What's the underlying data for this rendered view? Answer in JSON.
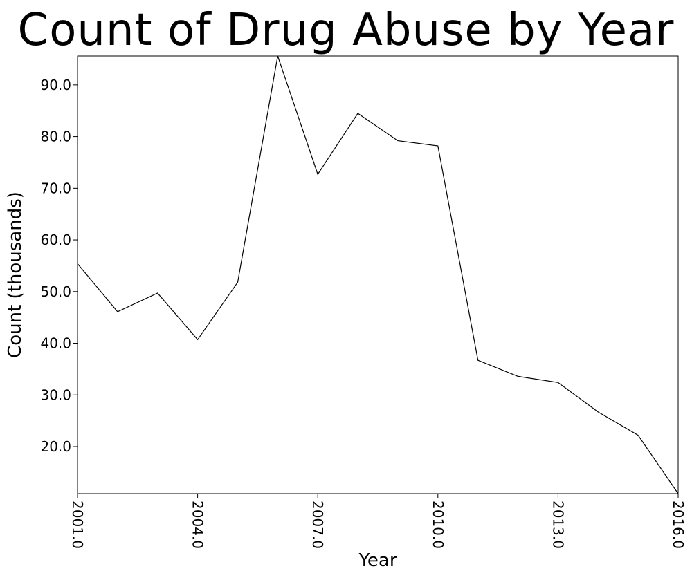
{
  "chart_data": {
    "type": "line",
    "title": "Count of Drug Abuse by Year",
    "xlabel": "Year",
    "ylabel": "Count (thousands)",
    "x": [
      2001,
      2002,
      2003,
      2004,
      2005,
      2006,
      2007,
      2008,
      2009,
      2010,
      2011,
      2012,
      2013,
      2014,
      2015,
      2016
    ],
    "values": [
      55.4,
      46.1,
      49.7,
      40.7,
      51.8,
      95.6,
      72.7,
      84.5,
      79.2,
      78.2,
      36.7,
      33.6,
      32.4,
      26.7,
      22.2,
      10.9
    ],
    "xlim": [
      2001,
      2016
    ],
    "ylim": [
      10.9,
      95.6
    ],
    "xticks": [
      2001,
      2004,
      2007,
      2010,
      2013,
      2016
    ],
    "xtick_labels": [
      "2001.0",
      "2004.0",
      "2007.0",
      "2010.0",
      "2013.0",
      "2016.0"
    ],
    "yticks": [
      20,
      30,
      40,
      50,
      60,
      70,
      80,
      90
    ],
    "ytick_labels": [
      "20.0",
      "30.0",
      "40.0",
      "50.0",
      "60.0",
      "70.0",
      "80.0",
      "90.0"
    ],
    "grid": false,
    "line_color": "#000000"
  }
}
